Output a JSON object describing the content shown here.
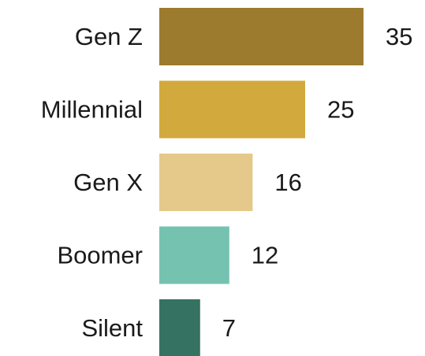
{
  "chart_data": {
    "type": "bar",
    "orientation": "horizontal",
    "categories": [
      "Gen Z",
      "Millennial",
      "Gen X",
      "Boomer",
      "Silent"
    ],
    "values": [
      35,
      25,
      16,
      12,
      7
    ],
    "colors": [
      "#9c7a2e",
      "#d2a93c",
      "#e4c98a",
      "#76c2b1",
      "#367262"
    ],
    "data_labels": [
      "35",
      "25",
      "16",
      "12",
      "7"
    ],
    "grid": false,
    "legend": "none"
  }
}
